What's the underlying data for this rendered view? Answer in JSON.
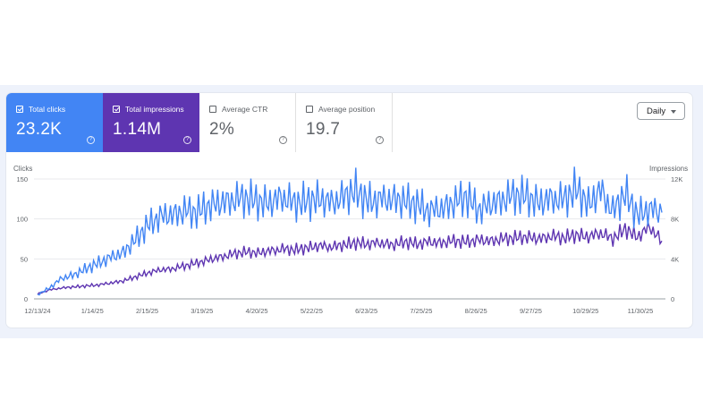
{
  "metrics": [
    {
      "label": "Total clicks",
      "value": "23.2K",
      "checked": true
    },
    {
      "label": "Total impressions",
      "value": "1.14M",
      "checked": true
    },
    {
      "label": "Average CTR",
      "value": "2%",
      "checked": false
    },
    {
      "label": "Average position",
      "value": "19.7",
      "checked": false
    }
  ],
  "help_glyph": "?",
  "granularity": {
    "selected": "Daily"
  },
  "colors": {
    "clicks": "#4285f4",
    "impressions": "#5e35b1"
  },
  "chart_data": {
    "type": "line",
    "left_axis": {
      "label": "Clicks",
      "ticks": [
        "150",
        "100",
        "50",
        "0"
      ],
      "range": [
        0,
        150
      ]
    },
    "right_axis": {
      "label": "Impressions",
      "ticks": [
        "12K",
        "8K",
        "4K",
        "0"
      ],
      "range": [
        0,
        12000
      ]
    },
    "x_ticks": [
      "12/13/24",
      "1/14/25",
      "2/15/25",
      "3/19/25",
      "4/20/25",
      "5/22/25",
      "6/23/25",
      "7/25/25",
      "8/26/25",
      "9/27/25",
      "10/29/25",
      "11/30/25"
    ],
    "series": [
      {
        "name": "Clicks",
        "axis": "left",
        "values": [
          5,
          14,
          26,
          30,
          38,
          45,
          52,
          58,
          74,
          92,
          103,
          105,
          110,
          108,
          117,
          120,
          124,
          126,
          122,
          120,
          128,
          120,
          122,
          125,
          120,
          128,
          135,
          122,
          124,
          125,
          122,
          118,
          110,
          113,
          120,
          128,
          112,
          118,
          124,
          130,
          128,
          120,
          126,
          124,
          138,
          118,
          136,
          110,
          132,
          105,
          112,
          108
        ]
      },
      {
        "name": "Impressions",
        "axis": "right",
        "values": [
          500,
          900,
          1100,
          1200,
          1300,
          1400,
          1600,
          1800,
          2200,
          2600,
          2900,
          3000,
          3300,
          3600,
          3900,
          4200,
          4500,
          4700,
          4600,
          4800,
          5000,
          4900,
          5100,
          5300,
          5200,
          5400,
          5600,
          5500,
          5600,
          5400,
          5700,
          5500,
          5700,
          5600,
          5800,
          5700,
          5900,
          5800,
          6000,
          6100,
          6200,
          6000,
          6300,
          6100,
          6400,
          6200,
          6600,
          6000,
          7000,
          6200,
          7200,
          5800
        ]
      }
    ]
  }
}
